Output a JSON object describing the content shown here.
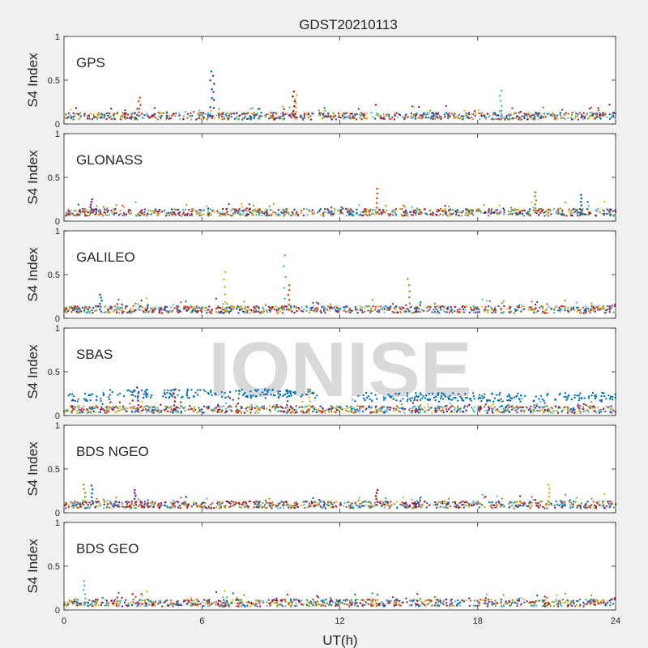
{
  "figure": {
    "title": "GDST20210113",
    "xlabel": "UT(h)",
    "watermark": "IONISE"
  },
  "chart_data": [
    {
      "type": "scatter",
      "title": "GPS",
      "ylabel": "S4 Index",
      "ylim": [
        0,
        1
      ],
      "xlim": [
        0,
        24
      ],
      "yticks": [
        "0",
        "0.5",
        "1"
      ],
      "xticks": [
        "0",
        "6",
        "12",
        "18",
        "24"
      ],
      "grid": false,
      "series": [
        {
          "baseline": 0.09,
          "spikes": [
            [
              6.4,
              0.6
            ],
            [
              6.5,
              0.55
            ],
            [
              10.0,
              0.37
            ],
            [
              10.1,
              0.33
            ],
            [
              19.0,
              0.38
            ],
            [
              3.3,
              0.3
            ]
          ]
        }
      ]
    },
    {
      "type": "scatter",
      "title": "GLONASS",
      "ylabel": "S4 Index",
      "ylim": [
        0,
        1
      ],
      "xlim": [
        0,
        24
      ],
      "yticks": [
        "0",
        "0.5",
        "1"
      ],
      "xticks": [
        "0",
        "6",
        "12",
        "18",
        "24"
      ],
      "grid": false,
      "series": [
        {
          "baseline": 0.1,
          "spikes": [
            [
              13.6,
              0.37
            ],
            [
              20.5,
              0.33
            ],
            [
              22.5,
              0.3
            ],
            [
              1.2,
              0.25
            ]
          ]
        }
      ]
    },
    {
      "type": "scatter",
      "title": "GALILEO",
      "ylabel": "S4 Index",
      "ylim": [
        0,
        1
      ],
      "xlim": [
        0,
        24
      ],
      "yticks": [
        "0",
        "0.5",
        "1"
      ],
      "xticks": [
        "0",
        "6",
        "12",
        "18",
        "24"
      ],
      "grid": false,
      "series": [
        {
          "baseline": 0.1,
          "spikes": [
            [
              7.0,
              0.53
            ],
            [
              9.6,
              0.72
            ],
            [
              9.8,
              0.38
            ],
            [
              15.0,
              0.45
            ],
            [
              1.6,
              0.27
            ]
          ]
        }
      ]
    },
    {
      "type": "scatter",
      "title": "SBAS",
      "ylabel": "S4 Index",
      "ylim": [
        0,
        1
      ],
      "xlim": [
        0,
        24
      ],
      "yticks": [
        "0",
        "0.5",
        "1"
      ],
      "xticks": [
        "0",
        "6",
        "12",
        "18",
        "24"
      ],
      "grid": false,
      "series": [
        {
          "baseline": 0.07,
          "band": [
            0.15,
            0.35
          ],
          "gaps": [
            [
              3.9,
              4.3
            ],
            [
              11.0,
              12.8
            ]
          ],
          "spikes": [
            [
              3.2,
              0.32
            ],
            [
              4.8,
              0.3
            ],
            [
              10.7,
              0.3
            ]
          ]
        }
      ]
    },
    {
      "type": "scatter",
      "title": "BDS NGEO",
      "ylabel": "S4 Index",
      "ylim": [
        0,
        1
      ],
      "xlim": [
        0,
        24
      ],
      "yticks": [
        "0",
        "0.5",
        "1"
      ],
      "xticks": [
        "0",
        "6",
        "12",
        "18",
        "24"
      ],
      "grid": false,
      "series": [
        {
          "baseline": 0.09,
          "spikes": [
            [
              0.9,
              0.32
            ],
            [
              1.2,
              0.31
            ],
            [
              3.1,
              0.26
            ],
            [
              13.6,
              0.26
            ],
            [
              21.1,
              0.32
            ]
          ]
        }
      ]
    },
    {
      "type": "scatter",
      "title": "BDS GEO",
      "ylabel": "S4 Index",
      "ylim": [
        0,
        1
      ],
      "xlim": [
        0,
        24
      ],
      "yticks": [
        "0",
        "0.5",
        "1"
      ],
      "xticks": [
        "0",
        "6",
        "12",
        "18",
        "24"
      ],
      "grid": false,
      "series": [
        {
          "baseline": 0.08,
          "spikes": [
            [
              0.9,
              0.33
            ]
          ]
        }
      ]
    }
  ],
  "colors": {
    "palette": [
      "#0072bd",
      "#d95319",
      "#edb120",
      "#7e2f8e",
      "#77ac30",
      "#4dbeee",
      "#a2142f"
    ],
    "axis": "#262626",
    "watermark": "#d9d9d9",
    "panel_bg": "#ffffff",
    "figure_bg": "#f0f0f0"
  }
}
